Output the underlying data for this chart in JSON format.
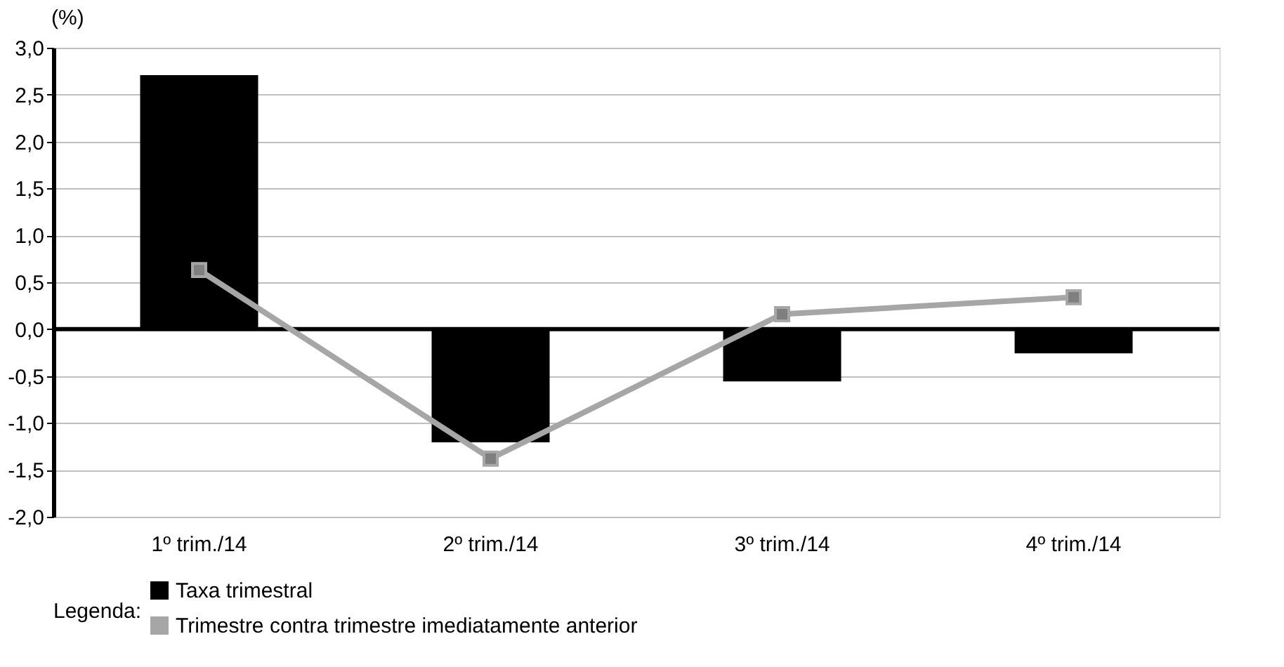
{
  "chart_data": {
    "type": "bar",
    "ylabel": "(%)",
    "legend_title": "Legenda:",
    "legend": "bottom",
    "grid": "y",
    "categories": [
      "1º trim./14",
      "2º trim./14",
      "3º trim./14",
      "4º trim./14"
    ],
    "series": [
      {
        "name": "Taxa trimestral",
        "color": "#000000",
        "values": [
          2.7,
          -1.2,
          -0.55,
          -0.25
        ]
      },
      {
        "name": "Trimestre contra trimestre imediatamente anterior",
        "type": "line",
        "color": "#a6a6a6",
        "marker": "square",
        "values": [
          0.63,
          -1.38,
          0.16,
          0.34
        ]
      }
    ],
    "ylim": [
      -2.0,
      3.0
    ],
    "yticks": [
      {
        "value": -2.0,
        "label": "-2,0"
      },
      {
        "value": -1.5,
        "label": "-1,5"
      },
      {
        "value": -1.0,
        "label": "-1,0"
      },
      {
        "value": -0.5,
        "label": "-0,5"
      },
      {
        "value": 0.0,
        "label": "0,0"
      },
      {
        "value": 0.5,
        "label": "0,5"
      },
      {
        "value": 1.0,
        "label": "1,0"
      },
      {
        "value": 1.5,
        "label": "1,5"
      },
      {
        "value": 2.0,
        "label": "2,0"
      },
      {
        "value": 2.5,
        "label": "2,5"
      },
      {
        "value": 3.0,
        "label": "3,0"
      }
    ],
    "ref_lines": [
      {
        "axis": "y",
        "value": 0,
        "color": "#000000"
      }
    ]
  }
}
